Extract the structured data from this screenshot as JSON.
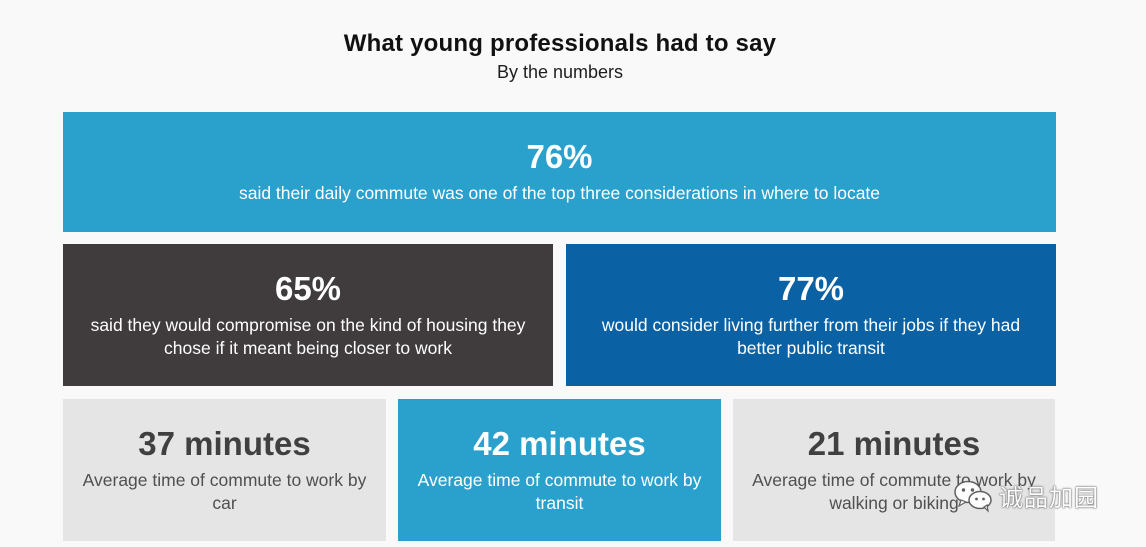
{
  "header": {
    "title": "What young professionals had to say",
    "subtitle": "By the numbers"
  },
  "tiles": [
    {
      "stat": "76%",
      "description": "said their daily commute was one of the top three considerations in where to locate",
      "color": "#2aa0cc"
    },
    {
      "stat": "65%",
      "description": "said they would compromise on the kind of housing they chose if it meant being closer to work",
      "color": "#403b3d"
    },
    {
      "stat": "77%",
      "description": "would consider living further from their jobs if they had better public transit",
      "color": "#0a62a5"
    },
    {
      "stat": "37 minutes",
      "description": "Average time of commute to work by car",
      "color": "#e5e5e6"
    },
    {
      "stat": "42 minutes",
      "description": "Average time of commute to work by transit",
      "color": "#2aa0cc"
    },
    {
      "stat": "21 minutes",
      "description": "Average time of commute to work by walking or biking",
      "color": "#e5e5e6"
    }
  ],
  "watermark": {
    "icon": "wechat-icon",
    "text": "诚品加园"
  }
}
